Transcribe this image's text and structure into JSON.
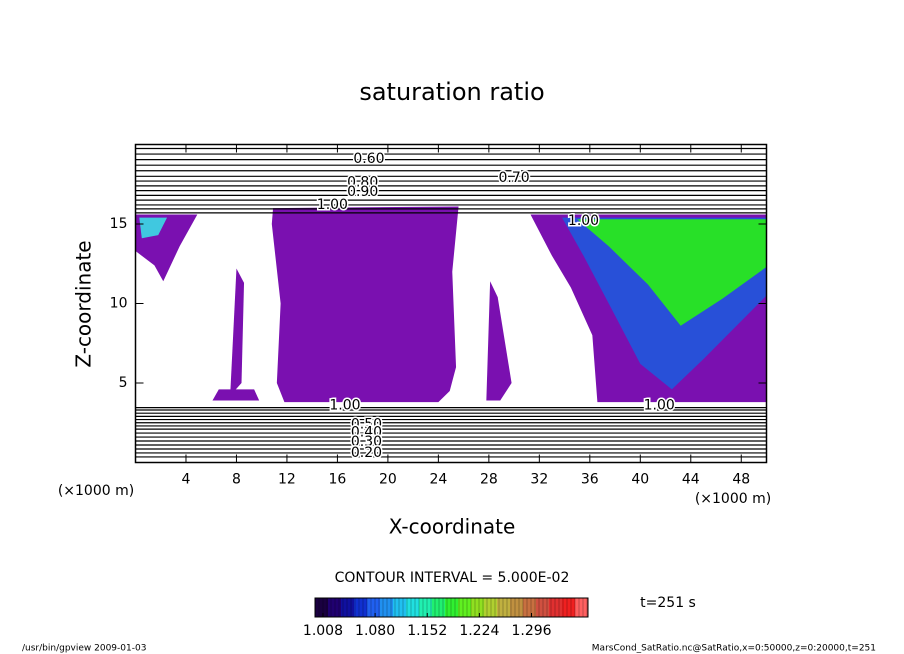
{
  "chart_data": {
    "type": "contour",
    "title": "saturation ratio",
    "x_label": "X-coordinate",
    "y_label": "Z-coordinate",
    "x_units": "(×1000 m)",
    "y_units": "(×1000 m)",
    "xlim": [
      0,
      50
    ],
    "ylim": [
      0,
      20
    ],
    "xticks": [
      4,
      8,
      12,
      16,
      20,
      24,
      28,
      32,
      36,
      40,
      44,
      48
    ],
    "yticks": [
      5,
      10,
      15
    ],
    "contour_lines_z": [
      15.7,
      15.95,
      16.2,
      16.5,
      16.8,
      17.1,
      17.4,
      17.7,
      18.0,
      18.35,
      18.7,
      19.05,
      19.4,
      19.75,
      3.45,
      3.3,
      3.1,
      2.9,
      2.7,
      2.5,
      2.3,
      2.1,
      1.85,
      1.6,
      1.35,
      1.1,
      0.85,
      0.6,
      0.35
    ],
    "contour_labels": [
      {
        "value": 0.6,
        "label": "0.60",
        "x": 18.5,
        "y": 19.1
      },
      {
        "value": 0.8,
        "label": "0.80",
        "x": 18,
        "y": 17.6
      },
      {
        "value": 0.9,
        "label": "0.90",
        "x": 18,
        "y": 17.0
      },
      {
        "value": 1,
        "label": "1.00",
        "x": 15.6,
        "y": 16.2
      },
      {
        "value": 0.7,
        "label": "0.70",
        "x": 30,
        "y": 17.9
      },
      {
        "value": 1,
        "label": "1.00",
        "x": 35.5,
        "y": 15.2
      },
      {
        "value": 1,
        "label": "1.00",
        "x": 41.5,
        "y": 3.6
      },
      {
        "value": 1,
        "label": "1.00",
        "x": 16.6,
        "y": 3.6
      },
      {
        "value": 0.5,
        "label": "0.50",
        "x": 18.3,
        "y": 2.4
      },
      {
        "value": 0.4,
        "label": "0.40",
        "x": 18.3,
        "y": 1.9
      },
      {
        "value": 0.3,
        "label": "0.30",
        "x": 18.3,
        "y": 1.3
      },
      {
        "value": 0.2,
        "label": "0.20",
        "x": 18.3,
        "y": 0.6
      }
    ],
    "regions": [
      {
        "color": "#7a10b0",
        "points": [
          [
            10.9,
            16.0
          ],
          [
            25.6,
            16.1
          ],
          [
            25.1,
            12
          ],
          [
            25.4,
            6
          ],
          [
            24.9,
            4.5
          ],
          [
            24,
            3.8
          ],
          [
            11.8,
            3.8
          ],
          [
            11.2,
            5
          ],
          [
            11.5,
            10
          ],
          [
            10.8,
            15
          ]
        ]
      },
      {
        "color": "#7a10b0",
        "points": [
          [
            0,
            15.6
          ],
          [
            4.9,
            15.6
          ],
          [
            3.5,
            13.6
          ],
          [
            2.2,
            11.4
          ],
          [
            1.5,
            12.4
          ],
          [
            0,
            13.3
          ]
        ]
      },
      {
        "color": "#40c8e0",
        "points": [
          [
            0.3,
            15.4
          ],
          [
            2.5,
            15.4
          ],
          [
            1.8,
            14.3
          ],
          [
            0.5,
            14.1
          ]
        ]
      },
      {
        "color": "#7a10b0",
        "points": [
          [
            7.5,
            4.2
          ],
          [
            8.0,
            12.2
          ],
          [
            8.6,
            11.3
          ],
          [
            8.4,
            5
          ]
        ]
      },
      {
        "color": "#7a10b0",
        "points": [
          [
            6.1,
            3.9
          ],
          [
            9.8,
            3.9
          ],
          [
            9.4,
            4.6
          ],
          [
            6.6,
            4.6
          ]
        ]
      },
      {
        "color": "#7a10b0",
        "points": [
          [
            27.8,
            3.9
          ],
          [
            28.1,
            11.4
          ],
          [
            28.7,
            10.4
          ],
          [
            29.8,
            5
          ],
          [
            28.9,
            3.9
          ]
        ]
      },
      {
        "color": "#7a10b0",
        "points": [
          [
            31.3,
            15.6
          ],
          [
            50,
            15.6
          ],
          [
            50,
            3.8
          ],
          [
            36.6,
            3.8
          ],
          [
            36.2,
            8
          ],
          [
            34.5,
            11
          ],
          [
            33,
            13
          ]
        ]
      },
      {
        "color": "#2850d8",
        "points": [
          [
            33.8,
            15.4
          ],
          [
            50,
            15.4
          ],
          [
            50,
            10.5
          ],
          [
            45,
            6.5
          ],
          [
            42.5,
            4.6
          ],
          [
            40,
            6.2
          ],
          [
            37.5,
            10
          ],
          [
            35.5,
            13
          ]
        ]
      },
      {
        "color": "#28e028",
        "points": [
          [
            35,
            15.3
          ],
          [
            50,
            15.3
          ],
          [
            50,
            12.3
          ],
          [
            46.5,
            10.3
          ],
          [
            43.2,
            8.6
          ],
          [
            40.6,
            11.2
          ],
          [
            37.5,
            13.6
          ]
        ]
      }
    ],
    "contour_interval": "CONTOUR INTERVAL = 5.000E-02",
    "time_label": "t=251 s",
    "colorbar": {
      "lim": [
        0.997,
        1.374
      ],
      "ticks": [
        1.008,
        {
          "value": 1.08,
          "label": "1.080"
        },
        1.152,
        1.224,
        1.296
      ],
      "colors": [
        "#1a0040",
        "#200070",
        "#1010a0",
        "#1030d0",
        "#2060f0",
        "#2090f0",
        "#20c0f0",
        "#20e0e0",
        "#20f0b0",
        "#20f070",
        "#30f030",
        "#60f020",
        "#90e020",
        "#b0d030",
        "#c0b040",
        "#c09040",
        "#c87040",
        "#d05040",
        "#e03030",
        "#f02020",
        "#ff6060"
      ]
    },
    "footer_left": "/usr/bin/gpview  2009-01-03",
    "footer_right": "MarsCond_SatRatio.nc@SatRatio,x=0:50000,z=0:20000,t=251"
  }
}
